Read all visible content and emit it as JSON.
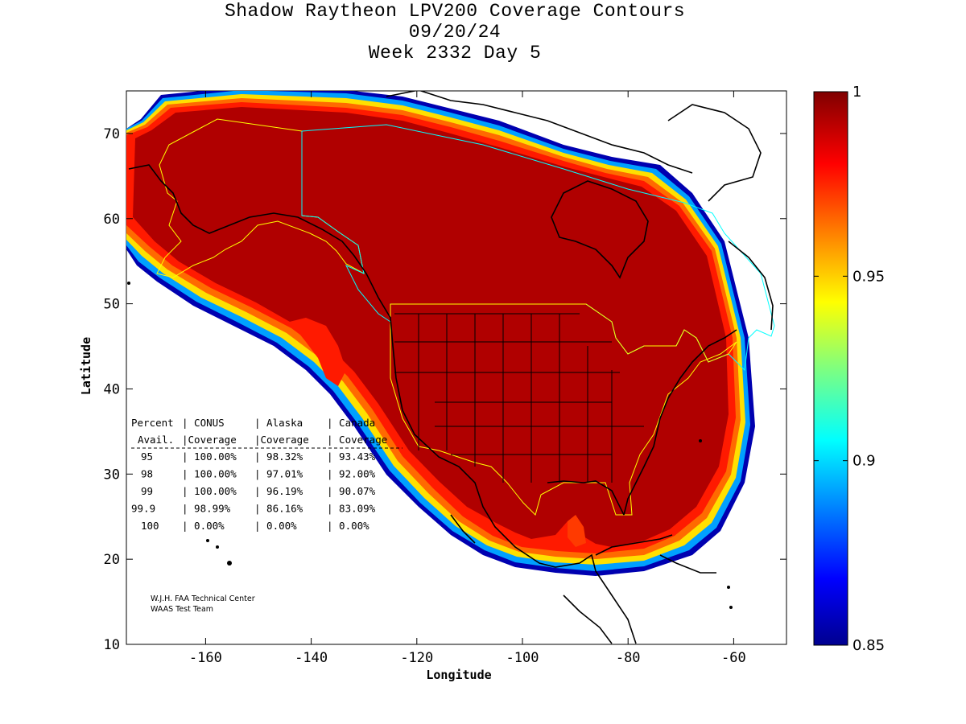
{
  "title": {
    "line1": "Shadow Raytheon LPV200 Coverage Contours",
    "line2": "09/20/24",
    "line3": "Week 2332 Day 5"
  },
  "axes": {
    "xlabel": "Longitude",
    "ylabel": "Latitude",
    "x_ticks": [
      "-160",
      "-140",
      "-120",
      "-100",
      "-80",
      "-60"
    ],
    "y_ticks": [
      "10",
      "20",
      "30",
      "40",
      "50",
      "60",
      "70"
    ],
    "x_range": [
      -175,
      -50
    ],
    "y_range": [
      10,
      75
    ]
  },
  "colorbar": {
    "ticks": [
      "1",
      "0.95",
      "0.9",
      "0.85"
    ],
    "range": [
      0.85,
      1.0
    ],
    "colormap": "jet"
  },
  "stats_table": {
    "header1": [
      "Percent",
      "CONUS",
      "Alaska",
      "Canada"
    ],
    "header2": [
      "Avail.",
      "Coverage",
      "Coverage",
      "Coverage"
    ],
    "rows": [
      [
        "95",
        "100.00%",
        "98.32%",
        "93.43%"
      ],
      [
        "98",
        "100.00%",
        "97.01%",
        "92.00%"
      ],
      [
        "99",
        "100.00%",
        "96.19%",
        "90.07%"
      ],
      [
        "99.9",
        "98.99%",
        "86.16%",
        "83.09%"
      ],
      [
        "100",
        "0.00%",
        "0.00%",
        "0.00%"
      ]
    ]
  },
  "credit": {
    "line1": "W.J.H. FAA Technical Center",
    "line2": "WAAS Test Team"
  },
  "colors": {
    "full_coverage": "#b00000",
    "boundary_yellow": "#ffff00",
    "boundary_cyan": "#00ffff",
    "coastline": "#000000"
  }
}
